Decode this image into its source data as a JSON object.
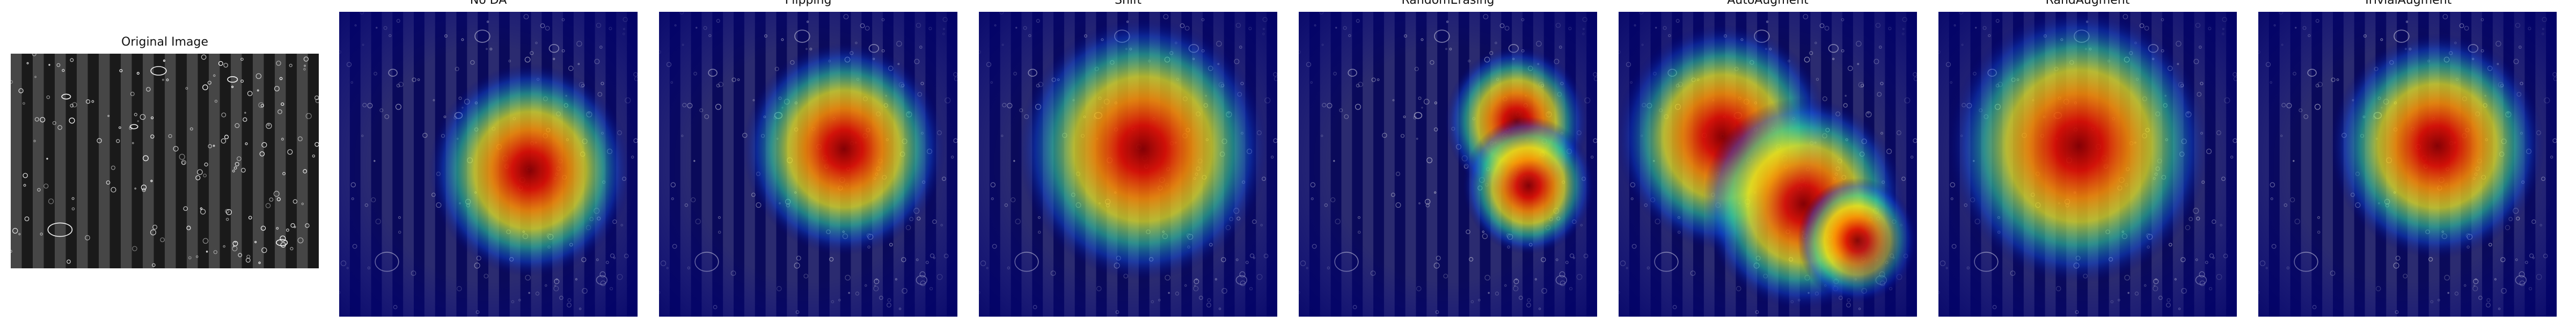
{
  "figure": {
    "panels": [
      {
        "key": "original",
        "title": "Original Image",
        "kind": "grayscale"
      },
      {
        "key": "noda",
        "title": "No DA",
        "kind": "heatmap",
        "hotspots": [
          {
            "cx": 0.64,
            "cy": 0.52,
            "r": 0.17
          }
        ]
      },
      {
        "key": "flipping",
        "title": "Flipping",
        "kind": "heatmap",
        "hotspots": [
          {
            "cx": 0.62,
            "cy": 0.45,
            "r": 0.17
          }
        ]
      },
      {
        "key": "shift",
        "title": "Shift",
        "kind": "heatmap",
        "hotspots": [
          {
            "cx": 0.55,
            "cy": 0.45,
            "r": 0.21
          }
        ]
      },
      {
        "key": "randomerasing",
        "title": "RandomErasing",
        "kind": "heatmap",
        "hotspots": [
          {
            "cx": 0.73,
            "cy": 0.36,
            "r": 0.12
          },
          {
            "cx": 0.77,
            "cy": 0.57,
            "r": 0.11
          }
        ]
      },
      {
        "key": "autoaugment",
        "title": "AutoAugment",
        "kind": "heatmap",
        "hotspots": [
          {
            "cx": 0.35,
            "cy": 0.41,
            "r": 0.18
          },
          {
            "cx": 0.62,
            "cy": 0.63,
            "r": 0.17
          },
          {
            "cx": 0.8,
            "cy": 0.75,
            "r": 0.1
          }
        ]
      },
      {
        "key": "randaugment",
        "title": "RandAugment",
        "kind": "heatmap",
        "hotspots": [
          {
            "cx": 0.47,
            "cy": 0.44,
            "r": 0.22
          }
        ]
      },
      {
        "key": "trivialaugment",
        "title": "TrivialAugment",
        "kind": "heatmap",
        "hotspots": [
          {
            "cx": 0.6,
            "cy": 0.44,
            "r": 0.18
          }
        ]
      }
    ]
  }
}
